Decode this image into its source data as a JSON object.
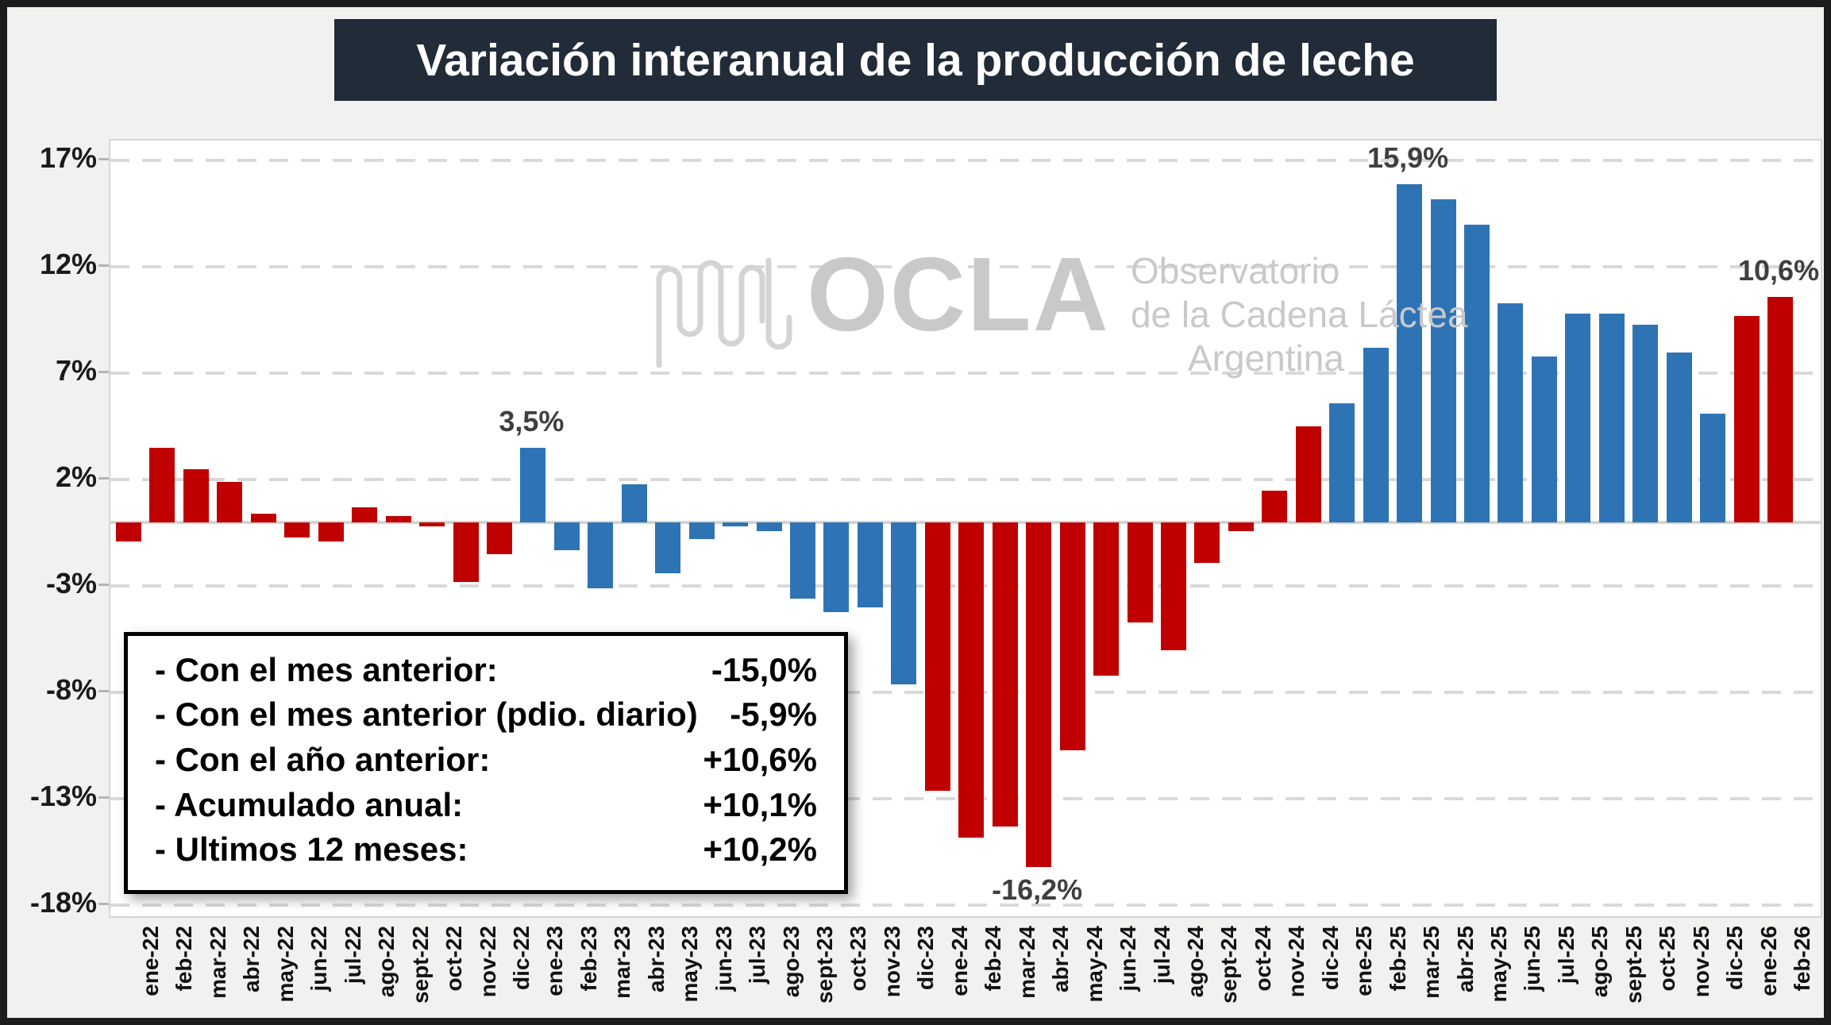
{
  "title": "Variación interanual de la producción de leche",
  "watermark": {
    "acronym": "OCLA",
    "line1": "Observatorio",
    "line2": "de la Cadena Láctea",
    "line3": "Argentina"
  },
  "info_box": {
    "rows": [
      {
        "label": "- Con el mes anterior:",
        "value": "-15,0%"
      },
      {
        "label": "- Con el mes anterior (pdio. diario)",
        "value": "-5,9%"
      },
      {
        "label": "- Con el año anterior:",
        "value": "+10,6%"
      },
      {
        "label": "- Acumulado anual:",
        "value": "+10,1%"
      },
      {
        "label": "- Ultimos 12 meses:",
        "value": "+10,2%"
      }
    ]
  },
  "colors": {
    "red": "#c00000",
    "blue": "#2e74b5",
    "grid": "#d9d9d9",
    "title_bg": "#222b38",
    "annotation": "#3f3f3f",
    "watermark": "#c9c9c9"
  },
  "chart_data": {
    "type": "bar",
    "title": "Variación interanual de la producción de leche",
    "xlabel": "",
    "ylabel": "",
    "ylim": [
      -18,
      17
    ],
    "grid": "horizontal-dashed",
    "legend": "none",
    "categories": [
      "ene-22",
      "feb-22",
      "mar-22",
      "abr-22",
      "may-22",
      "jun-22",
      "jul-22",
      "ago-22",
      "sept-22",
      "oct-22",
      "nov-22",
      "dic-22",
      "ene-23",
      "feb-23",
      "mar-23",
      "abr-23",
      "may-23",
      "jun-23",
      "jul-23",
      "ago-23",
      "sept-23",
      "oct-23",
      "nov-23",
      "dic-23",
      "ene-24",
      "feb-24",
      "mar-24",
      "abr-24",
      "may-24",
      "jun-24",
      "jul-24",
      "ago-24",
      "sept-24",
      "oct-24",
      "nov-24",
      "dic-24",
      "ene-25",
      "feb-25",
      "mar-25",
      "abr-25",
      "may-25",
      "jun-25",
      "jul-25",
      "ago-25",
      "sept-25",
      "oct-25",
      "nov-25",
      "dic-25",
      "ene-26",
      "feb-26"
    ],
    "values": [
      -0.9,
      3.5,
      2.5,
      1.9,
      0.4,
      -0.7,
      -0.9,
      0.7,
      0.3,
      -0.2,
      -2.8,
      -1.5,
      3.5,
      -1.3,
      -3.1,
      1.8,
      -2.4,
      -0.8,
      -0.2,
      -0.4,
      -3.6,
      -4.2,
      -4.0,
      -7.6,
      -12.6,
      -14.8,
      -14.3,
      -16.2,
      -10.7,
      -7.2,
      -4.7,
      -6.0,
      -1.9,
      -0.4,
      1.5,
      4.5,
      5.6,
      8.2,
      15.9,
      15.2,
      14.0,
      10.3,
      7.8,
      9.8,
      9.8,
      9.3,
      8.0,
      5.1,
      9.7,
      10.6
    ],
    "bar_colors": [
      "#c00000",
      "#c00000",
      "#c00000",
      "#c00000",
      "#c00000",
      "#c00000",
      "#c00000",
      "#c00000",
      "#c00000",
      "#c00000",
      "#c00000",
      "#c00000",
      "#2e74b5",
      "#2e74b5",
      "#2e74b5",
      "#2e74b5",
      "#2e74b5",
      "#2e74b5",
      "#2e74b5",
      "#2e74b5",
      "#2e74b5",
      "#2e74b5",
      "#2e74b5",
      "#2e74b5",
      "#c00000",
      "#c00000",
      "#c00000",
      "#c00000",
      "#c00000",
      "#c00000",
      "#c00000",
      "#c00000",
      "#c00000",
      "#c00000",
      "#c00000",
      "#c00000",
      "#2e74b5",
      "#2e74b5",
      "#2e74b5",
      "#2e74b5",
      "#2e74b5",
      "#2e74b5",
      "#2e74b5",
      "#2e74b5",
      "#2e74b5",
      "#2e74b5",
      "#2e74b5",
      "#2e74b5",
      "#c00000",
      "#c00000"
    ],
    "yticks": [
      {
        "v": 17,
        "label": "17%"
      },
      {
        "v": 12,
        "label": "12%"
      },
      {
        "v": 7,
        "label": "7%"
      },
      {
        "v": 2,
        "label": "2%"
      },
      {
        "v": -3,
        "label": "-3%"
      },
      {
        "v": -8,
        "label": "-8%"
      },
      {
        "v": -13,
        "label": "-13%"
      },
      {
        "v": -18,
        "label": "-18%"
      }
    ],
    "annotations": [
      {
        "index": 12,
        "text": "3,5%",
        "placement": "above"
      },
      {
        "index": 27,
        "text": "-16,2%",
        "placement": "below"
      },
      {
        "index": 38,
        "text": "15,9%",
        "placement": "above"
      },
      {
        "index": 49,
        "text": "10,6%",
        "placement": "above"
      }
    ]
  }
}
